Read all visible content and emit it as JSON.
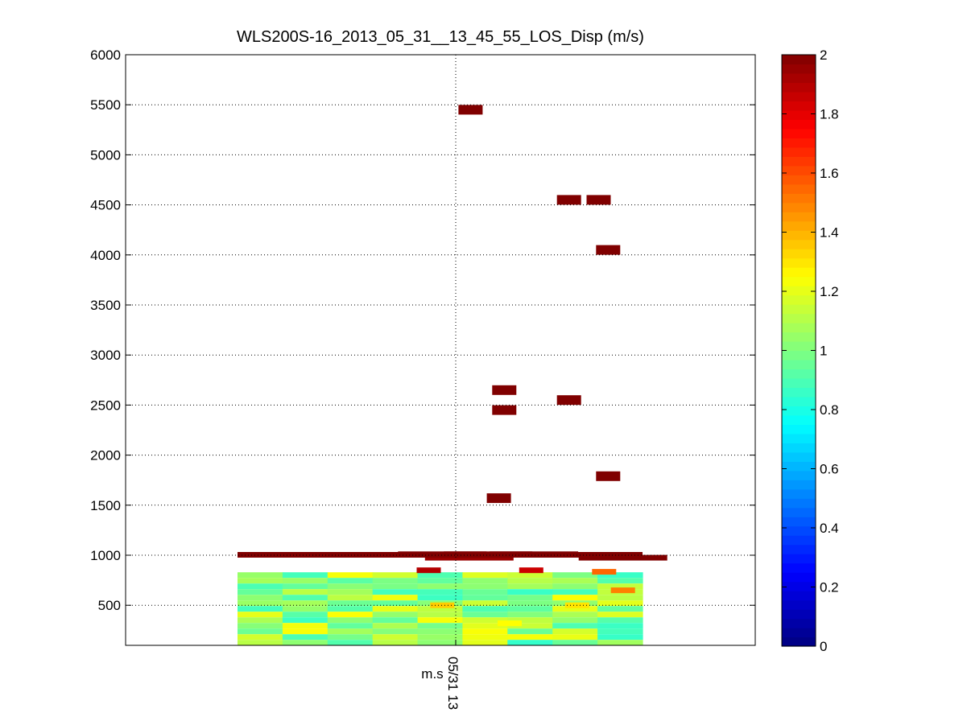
{
  "chart_data": {
    "type": "heatmap",
    "title": "WLS200S-16_2013_05_31__13_45_55_LOS_Disp (m/s)",
    "xlabel": "m.s",
    "x_tick_labels": [
      "05/31 13"
    ],
    "ylabel": "",
    "ylim": [
      100,
      6000
    ],
    "yticks": [
      500,
      1000,
      1500,
      2000,
      2500,
      3000,
      3500,
      4000,
      4500,
      5000,
      5500,
      6000
    ],
    "grid": true,
    "colormap": "jet",
    "colorbar": {
      "range": [
        0,
        2
      ],
      "ticks": [
        0,
        0.2,
        0.4,
        0.6,
        0.8,
        1,
        1.2,
        1.4,
        1.6,
        1.8,
        2
      ]
    },
    "columns_x": [
      0.05,
      0.14,
      0.21,
      0.27,
      0.34,
      0.42,
      0.5,
      0.57,
      0.62,
      0.7,
      0.77,
      0.85,
      0.93
    ],
    "background_band": {
      "y_from": 100,
      "y_to": 830,
      "value_range": [
        0.85,
        1.25
      ]
    },
    "cells": [
      {
        "x": 0.055,
        "y": 5450,
        "value": 2
      },
      {
        "x": 0.42,
        "y": 4550,
        "value": 2
      },
      {
        "x": 0.53,
        "y": 4550,
        "value": 2
      },
      {
        "x": 0.565,
        "y": 4050,
        "value": 2
      },
      {
        "x": 0.18,
        "y": 2650,
        "value": 2
      },
      {
        "x": 0.18,
        "y": 2450,
        "value": 2
      },
      {
        "x": 0.42,
        "y": 2550,
        "value": 2
      },
      {
        "x": 0.16,
        "y": 1570,
        "value": 2
      },
      {
        "x": 0.565,
        "y": 1790,
        "value": 2
      },
      {
        "x": -0.05,
        "y": 1010,
        "value": 2
      },
      {
        "x": 0.12,
        "y": 1010,
        "value": 2
      },
      {
        "x": 0.29,
        "y": 1010,
        "value": 2
      },
      {
        "x": 0.62,
        "y": 975,
        "value": 2
      },
      {
        "x": 0.05,
        "y": 975,
        "value": 1.95
      },
      {
        "x": -0.1,
        "y": 850,
        "value": 1.9
      },
      {
        "x": 0.28,
        "y": 850,
        "value": 1.85
      },
      {
        "x": 0.55,
        "y": 835,
        "value": 1.55
      },
      {
        "x": 0.62,
        "y": 650,
        "value": 1.5
      },
      {
        "x": 0.2,
        "y": 320,
        "value": 1.25
      },
      {
        "x": -0.05,
        "y": 500,
        "value": 1.35
      },
      {
        "x": 0.45,
        "y": 500,
        "value": 1.3
      }
    ]
  }
}
